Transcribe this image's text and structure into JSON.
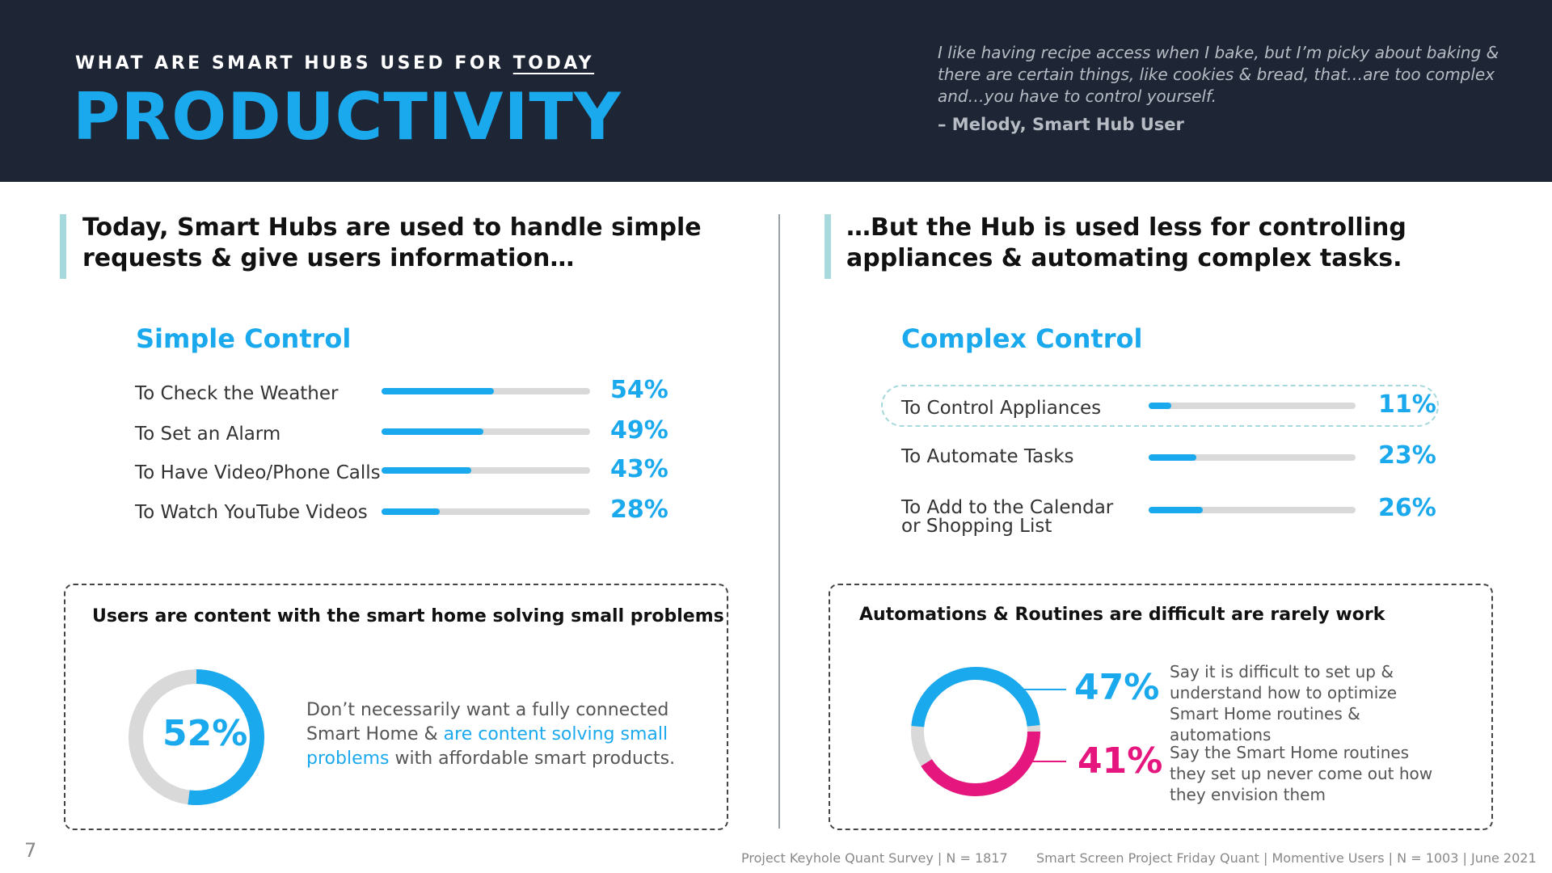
{
  "header": {
    "kicker_prefix": "WHAT ARE SMART HUBS USED FOR ",
    "kicker_underlined": "TODAY",
    "title": "PRODUCTIVITY",
    "quote": "I like having recipe access when I bake, but I’m picky about baking & there are certain things, like cookies & bread, that…are too complex and…you have to control yourself.",
    "quote_author": "– Melody, Smart Hub User"
  },
  "left": {
    "headline": "Today, Smart Hubs are used to handle simple requests & give users information…",
    "section_title": "Simple Control",
    "rows": [
      {
        "label": "To Check the Weather",
        "value": 54,
        "display": "54%"
      },
      {
        "label": "To Set an Alarm",
        "value": 49,
        "display": "49%"
      },
      {
        "label": "To Have Video/Phone Calls",
        "value": 43,
        "display": "43%"
      },
      {
        "label": "To Watch YouTube Videos",
        "value": 28,
        "display": "28%"
      }
    ],
    "box": {
      "title": "Users are content with the smart home solving small problems",
      "donut_value": 52,
      "donut_display": "52%",
      "text_before": "Don’t necessarily want a fully connected Smart Home & ",
      "text_highlight": "are content solving small problems",
      "text_after": " with affordable smart products."
    }
  },
  "right": {
    "headline": "…But the Hub is used less for controlling appliances & automating complex tasks.",
    "section_title": "Complex Control",
    "rows": [
      {
        "label": "To Control Appliances",
        "value": 11,
        "display": "11%"
      },
      {
        "label": "To Automate Tasks",
        "value": 23,
        "display": "23%"
      },
      {
        "label": "To Add to the Calendar or Shopping List",
        "value": 26,
        "display": "26%"
      }
    ],
    "box": {
      "title": "Automations & Routines are difficult are rarely work",
      "stats": [
        {
          "value": 47,
          "display": "47%",
          "color": "#1ba9ee",
          "text": "Say it is difficult to set up & understand how to optimize Smart Home routines & automations"
        },
        {
          "value": 41,
          "display": "41%",
          "color": "#e5177e",
          "text": "Say the Smart Home routines they set up never come out how they envision them"
        }
      ]
    }
  },
  "footer": {
    "page_number": "7",
    "source_1": "Project Keyhole Quant Survey | N = 1817",
    "source_2": "Smart Screen Project Friday Quant | Momentive Users | N = 1003 | June 2021"
  },
  "colors": {
    "navy": "#1e2635",
    "accent_blue": "#1ba9ee",
    "accent_pink": "#e5177e",
    "track_gray": "#d9d9d9",
    "teal_bar": "#a6d9dc"
  }
}
